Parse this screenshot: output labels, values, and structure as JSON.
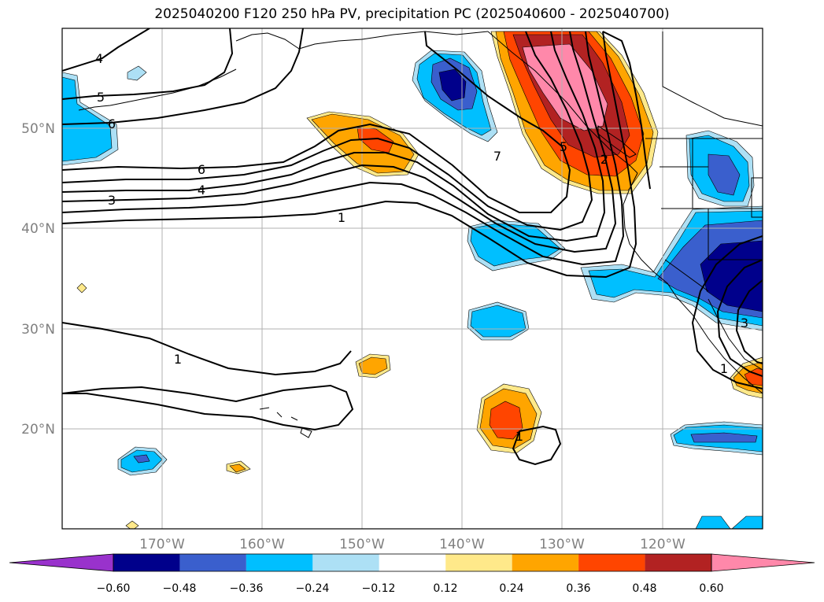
{
  "title": "2025040200 F120 250 hPa PV, precipitation PC (2025040600 - 2025040700)",
  "map": {
    "projection": "lat-lon",
    "lon_range": [
      -180,
      -110
    ],
    "lat_range": [
      10,
      60
    ],
    "grid": true,
    "lon_ticks": [
      {
        "value": -170,
        "label": "170°W"
      },
      {
        "value": -160,
        "label": "160°W"
      },
      {
        "value": -150,
        "label": "150°W"
      },
      {
        "value": -140,
        "label": "140°W"
      },
      {
        "value": -130,
        "label": "130°W"
      },
      {
        "value": -120,
        "label": "120°W"
      }
    ],
    "lat_ticks": [
      {
        "value": 50,
        "label": "50°N"
      },
      {
        "value": 40,
        "label": "40°N"
      },
      {
        "value": 30,
        "label": "30°N"
      },
      {
        "value": 20,
        "label": "20°N"
      }
    ],
    "contour_labels": [
      "4",
      "5",
      "6",
      "6",
      "4",
      "3",
      "1",
      "7",
      "5",
      "2",
      "1",
      "1",
      "3",
      "1"
    ]
  },
  "colorbar": {
    "extend": "both",
    "ticks": [
      "−0.60",
      "−0.48",
      "−0.36",
      "−0.24",
      "−0.12",
      "0.12",
      "0.24",
      "0.36",
      "0.48",
      "0.60"
    ],
    "colors": [
      "#9932CC",
      "#00008B",
      "#3A5FCD",
      "#00BFFF",
      "#ADE0F5",
      "#FFFFFF",
      "#FFE98A",
      "#FFA500",
      "#FF4500",
      "#B22222",
      "#FF88AA"
    ]
  }
}
